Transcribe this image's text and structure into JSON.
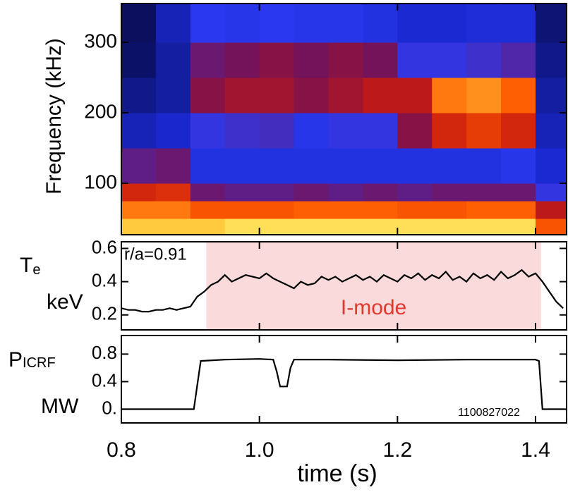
{
  "chart_data": [
    {
      "type": "heatmap",
      "ylabel": "Frequency (kHz)",
      "xlim": [
        0.8,
        1.445
      ],
      "ylim": [
        27,
        355
      ],
      "xticks": [
        0.8,
        {
          "value": 1,
          "label": "1.0"
        },
        1.2,
        1.4
      ],
      "yticks": [
        100,
        200,
        300
      ],
      "x_bins": [
        0.8,
        0.85,
        0.9,
        0.95,
        1.0,
        1.05,
        1.1,
        1.15,
        1.2,
        1.25,
        1.3,
        1.35,
        1.4,
        1.445
      ],
      "y_bins": [
        27,
        50,
        75,
        100,
        150,
        200,
        250,
        300,
        355
      ],
      "colormap": [
        "#050530",
        "#1a28d0",
        "#2b3af0",
        "#7a1050",
        "#c81a10",
        "#ff5a00",
        "#ffd040",
        "#ffff90"
      ],
      "values": [
        [
          0.85,
          0.85,
          0.85,
          0.9,
          0.9,
          0.9,
          0.9,
          0.9,
          0.9,
          0.9,
          0.9,
          0.9,
          0.7
        ],
        [
          0.75,
          0.75,
          0.7,
          0.7,
          0.7,
          0.72,
          0.72,
          0.72,
          0.7,
          0.7,
          0.72,
          0.72,
          0.55
        ],
        [
          0.6,
          0.62,
          0.4,
          0.38,
          0.38,
          0.4,
          0.38,
          0.4,
          0.38,
          0.4,
          0.4,
          0.4,
          0.3
        ],
        [
          0.38,
          0.4,
          0.22,
          0.22,
          0.22,
          0.22,
          0.22,
          0.22,
          0.22,
          0.22,
          0.22,
          0.25,
          0.15
        ],
        [
          0.12,
          0.14,
          0.3,
          0.32,
          0.33,
          0.25,
          0.3,
          0.3,
          0.45,
          0.6,
          0.65,
          0.6,
          0.12
        ],
        [
          0.08,
          0.1,
          0.45,
          0.5,
          0.5,
          0.45,
          0.5,
          0.55,
          0.55,
          0.75,
          0.78,
          0.72,
          0.1
        ],
        [
          0.05,
          0.1,
          0.4,
          0.42,
          0.45,
          0.42,
          0.45,
          0.42,
          0.3,
          0.3,
          0.32,
          0.35,
          0.08
        ],
        [
          0.04,
          0.12,
          0.28,
          0.25,
          0.28,
          0.25,
          0.25,
          0.22,
          0.15,
          0.15,
          0.18,
          0.18,
          0.06
        ]
      ]
    },
    {
      "type": "line",
      "ylabel": {
        "symbol": "T",
        "subscript": "e",
        "unit": "keV"
      },
      "annotation": "r/a=0.91",
      "span": {
        "label": "I-mode",
        "x": [
          0.923,
          1.408
        ],
        "color": "#fadada",
        "label_color": "#e0392f"
      },
      "xlim": [
        0.8,
        1.445
      ],
      "ylim": [
        0.11,
        0.64
      ],
      "xticks": [
        0.8,
        {
          "value": 1,
          "label": "1.0"
        },
        1.2,
        1.4
      ],
      "yticks": [
        0.2,
        0.4,
        0.6
      ],
      "color": "#000000",
      "x": [
        0.8,
        0.81,
        0.82,
        0.83,
        0.84,
        0.85,
        0.86,
        0.87,
        0.88,
        0.89,
        0.9,
        0.91,
        0.92,
        0.93,
        0.94,
        0.95,
        0.96,
        0.97,
        0.98,
        0.99,
        1.0,
        1.01,
        1.02,
        1.03,
        1.04,
        1.05,
        1.06,
        1.07,
        1.08,
        1.09,
        1.1,
        1.11,
        1.12,
        1.13,
        1.14,
        1.15,
        1.16,
        1.17,
        1.18,
        1.19,
        1.2,
        1.21,
        1.22,
        1.23,
        1.24,
        1.25,
        1.26,
        1.27,
        1.28,
        1.29,
        1.3,
        1.31,
        1.32,
        1.33,
        1.34,
        1.35,
        1.36,
        1.37,
        1.38,
        1.39,
        1.4,
        1.41,
        1.42,
        1.43,
        1.44
      ],
      "values": [
        0.24,
        0.23,
        0.23,
        0.22,
        0.22,
        0.23,
        0.23,
        0.24,
        0.23,
        0.24,
        0.25,
        0.31,
        0.34,
        0.38,
        0.4,
        0.44,
        0.4,
        0.42,
        0.44,
        0.43,
        0.42,
        0.45,
        0.42,
        0.4,
        0.38,
        0.36,
        0.4,
        0.38,
        0.39,
        0.43,
        0.41,
        0.43,
        0.4,
        0.42,
        0.44,
        0.41,
        0.43,
        0.4,
        0.44,
        0.42,
        0.4,
        0.44,
        0.42,
        0.45,
        0.41,
        0.44,
        0.42,
        0.46,
        0.41,
        0.43,
        0.4,
        0.45,
        0.42,
        0.44,
        0.41,
        0.46,
        0.42,
        0.44,
        0.47,
        0.43,
        0.45,
        0.4,
        0.34,
        0.28,
        0.24
      ]
    },
    {
      "type": "line",
      "ylabel": {
        "symbol": "P",
        "subscript": "ICRF",
        "unit": "MW"
      },
      "annotation": "1100827022",
      "xlabel": "time (s)",
      "xlim": [
        0.8,
        1.445
      ],
      "ylim": [
        -0.2,
        1.07
      ],
      "xticks": [
        0.8,
        {
          "value": 1,
          "label": "1.0"
        },
        1.2,
        1.4
      ],
      "yticks": [
        {
          "value": 0,
          "label": "0."
        },
        0.4,
        0.8
      ],
      "color": "#000000",
      "x": [
        0.8,
        0.905,
        0.915,
        0.95,
        1.0,
        1.02,
        1.025,
        1.03,
        1.04,
        1.045,
        1.05,
        1.1,
        1.2,
        1.3,
        1.4,
        1.405,
        1.41,
        1.445
      ],
      "values": [
        0,
        0,
        0.7,
        0.72,
        0.73,
        0.72,
        0.55,
        0.33,
        0.33,
        0.6,
        0.72,
        0.72,
        0.71,
        0.72,
        0.72,
        0.7,
        0,
        0
      ]
    }
  ]
}
